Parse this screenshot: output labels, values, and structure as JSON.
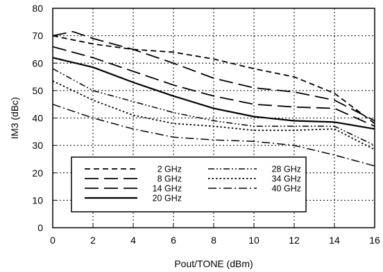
{
  "chart_data": {
    "type": "line",
    "xlabel": "Pout/TONE (dBm)",
    "ylabel": "IM3 (dBc)",
    "xlim": [
      0,
      16
    ],
    "ylim": [
      0,
      80
    ],
    "xticks": [
      0,
      2,
      4,
      6,
      8,
      10,
      12,
      14,
      16
    ],
    "yticks": [
      0,
      10,
      20,
      30,
      40,
      50,
      60,
      70,
      80
    ],
    "grid": true,
    "legend_position": "lower-left",
    "series": [
      {
        "name": "2 GHz",
        "dash": "short-dash",
        "width": 1.8,
        "x": [
          0,
          2,
          4,
          6,
          8,
          10,
          12,
          14,
          16
        ],
        "y": [
          70,
          67,
          65,
          64,
          61.5,
          58,
          55,
          49,
          38
        ]
      },
      {
        "name": "8 GHz",
        "dash": "long-dash",
        "width": 1.8,
        "x": [
          0,
          1,
          2,
          4,
          6,
          8,
          10,
          12,
          14,
          16
        ],
        "y": [
          70,
          71.5,
          69,
          65,
          60,
          54.5,
          51,
          49.5,
          46.5,
          39
        ]
      },
      {
        "name": "14 GHz",
        "dash": "long-dash",
        "width": 1.8,
        "x": [
          0,
          2,
          4,
          6,
          8,
          10,
          12,
          14,
          16
        ],
        "y": [
          66,
          62,
          57,
          52,
          48,
          45,
          44,
          43.5,
          37
        ]
      },
      {
        "name": "20 GHz",
        "dash": "solid",
        "width": 2.2,
        "x": [
          0,
          2,
          4,
          6,
          8,
          10,
          12,
          14,
          16
        ],
        "y": [
          62,
          58.5,
          53,
          48,
          43.5,
          40.5,
          39,
          38.5,
          36
        ]
      },
      {
        "name": "28 GHz",
        "dash": "dash-dot-dot",
        "width": 1.5,
        "x": [
          0,
          2,
          4,
          6,
          8,
          10,
          12,
          14,
          16
        ],
        "y": [
          58,
          50,
          46,
          42,
          39,
          37,
          37,
          37,
          30
        ]
      },
      {
        "name": "34 GHz",
        "dash": "dotted",
        "width": 1.8,
        "x": [
          0,
          2,
          4,
          6,
          8,
          10,
          12,
          14,
          16
        ],
        "y": [
          53.5,
          46.5,
          41,
          38,
          37,
          35.5,
          35.5,
          36,
          28.5
        ]
      },
      {
        "name": "40 GHz",
        "dash": "dash-dot",
        "width": 1.5,
        "x": [
          0,
          2,
          4,
          6,
          8,
          10,
          12,
          14,
          16
        ],
        "y": [
          45,
          40,
          36,
          33,
          32,
          31.5,
          30,
          26.5,
          22.5
        ]
      }
    ]
  }
}
